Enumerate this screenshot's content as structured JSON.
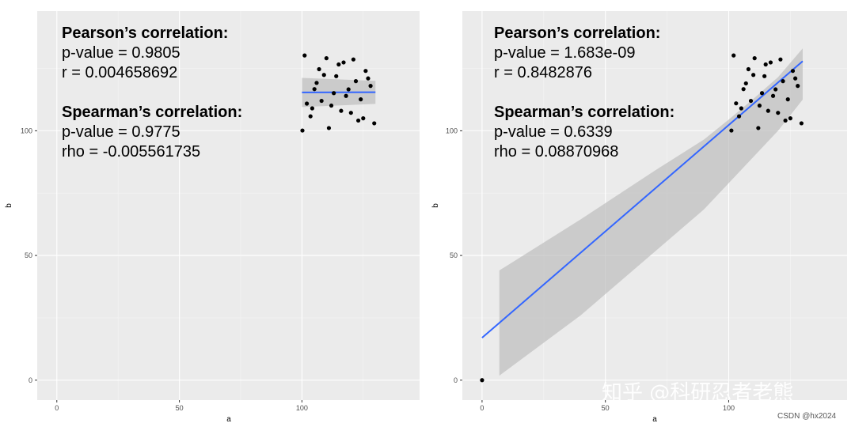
{
  "chart_data": [
    {
      "type": "scatter",
      "xlabel": "a",
      "ylabel": "b",
      "xlim": [
        -8,
        148
      ],
      "ylim": [
        -8,
        148
      ],
      "xticks": [
        0,
        50,
        100
      ],
      "yticks": [
        0,
        50,
        100
      ],
      "grid": true,
      "smooth": {
        "method": "lm",
        "slope": 0.002,
        "intercept": 115.2,
        "x_range": [
          100,
          130
        ],
        "ci_low_left": 109.5,
        "ci_high_left": 121.2,
        "ci_low_right": 110.8,
        "ci_high_right": 120.0
      },
      "annotation": {
        "pearson_header": "Pearson’s correlation:",
        "pearson_p": "p-value = 0.9805",
        "pearson_r": "r = 0.004658692",
        "spearman_header": "Spearman’s correlation:",
        "spearman_p": "p-value = 0.9775",
        "spearman_rho": "rho = -0.005561735"
      },
      "points": [
        [
          100.2,
          100.1
        ],
        [
          101.1,
          130.2
        ],
        [
          102.0,
          110.9
        ],
        [
          103.5,
          105.8
        ],
        [
          104.2,
          109.0
        ],
        [
          105.1,
          116.7
        ],
        [
          106.0,
          119.2
        ],
        [
          107.0,
          124.7
        ],
        [
          108.0,
          112.0
        ],
        [
          109.0,
          122.4
        ],
        [
          110.0,
          129.1
        ],
        [
          111.0,
          101.1
        ],
        [
          112.0,
          110.1
        ],
        [
          113.0,
          115.1
        ],
        [
          114.0,
          121.9
        ],
        [
          115.0,
          126.6
        ],
        [
          116.0,
          108.0
        ],
        [
          117.0,
          127.4
        ],
        [
          118.0,
          114.0
        ],
        [
          119.0,
          116.6
        ],
        [
          120.0,
          107.2
        ],
        [
          121.0,
          128.6
        ],
        [
          122.0,
          119.9
        ],
        [
          123.0,
          104.1
        ],
        [
          124.0,
          112.6
        ],
        [
          125.0,
          105.0
        ],
        [
          126.0,
          124.0
        ],
        [
          127.0,
          121.0
        ],
        [
          128.0,
          118.0
        ],
        [
          129.5,
          103.0
        ]
      ]
    },
    {
      "type": "scatter",
      "xlabel": "a",
      "ylabel": "b",
      "xlim": [
        -8,
        148
      ],
      "ylim": [
        -8,
        148
      ],
      "xticks": [
        0,
        50,
        100
      ],
      "yticks": [
        0,
        50,
        100
      ],
      "grid": true,
      "smooth": {
        "method": "lm",
        "slope": 0.853,
        "intercept": 17.0,
        "x_range": [
          0,
          130
        ],
        "ci_upper": [
          [
            7,
            44.0
          ],
          [
            40,
            64.5
          ],
          [
            70,
            84.0
          ],
          [
            90,
            96.5
          ],
          [
            100,
            104.5
          ],
          [
            110,
            112.8
          ],
          [
            120,
            121.5
          ],
          [
            130,
            133.0
          ]
        ],
        "ci_lower": [
          [
            7,
            1.8
          ],
          [
            40,
            26.0
          ],
          [
            70,
            51.5
          ],
          [
            90,
            68.5
          ],
          [
            100,
            79.0
          ],
          [
            110,
            89.5
          ],
          [
            120,
            100.0
          ],
          [
            130,
            112.5
          ]
        ]
      },
      "annotation": {
        "pearson_header": "Pearson’s correlation:",
        "pearson_p": "p-value = 1.683e-09",
        "pearson_r": "r = 0.8482876",
        "spearman_header": "Spearman’s correlation:",
        "spearman_p": "p-value = 0.6339",
        "spearman_rho": "rho = 0.08870968"
      },
      "points": [
        [
          0.0,
          0.0
        ],
        [
          101.1,
          100.1
        ],
        [
          102.0,
          130.2
        ],
        [
          103.0,
          111.0
        ],
        [
          104.2,
          105.8
        ],
        [
          105.1,
          109.0
        ],
        [
          106.0,
          116.7
        ],
        [
          107.0,
          119.0
        ],
        [
          108.0,
          124.7
        ],
        [
          109.0,
          112.0
        ],
        [
          110.0,
          122.4
        ],
        [
          110.5,
          129.1
        ],
        [
          112.0,
          101.1
        ],
        [
          112.5,
          110.1
        ],
        [
          113.5,
          115.1
        ],
        [
          114.5,
          121.9
        ],
        [
          115.0,
          126.6
        ],
        [
          116.0,
          108.0
        ],
        [
          117.0,
          127.4
        ],
        [
          118.0,
          114.0
        ],
        [
          119.0,
          116.6
        ],
        [
          120.0,
          107.2
        ],
        [
          121.0,
          128.6
        ],
        [
          122.0,
          119.9
        ],
        [
          123.0,
          104.1
        ],
        [
          124.0,
          112.6
        ],
        [
          125.0,
          105.0
        ],
        [
          126.0,
          124.0
        ],
        [
          127.0,
          121.0
        ],
        [
          128.0,
          118.0
        ],
        [
          129.5,
          103.0
        ]
      ]
    }
  ],
  "watermark": "知乎 @科研忍者老熊",
  "credit": "CSDN @hx2024"
}
